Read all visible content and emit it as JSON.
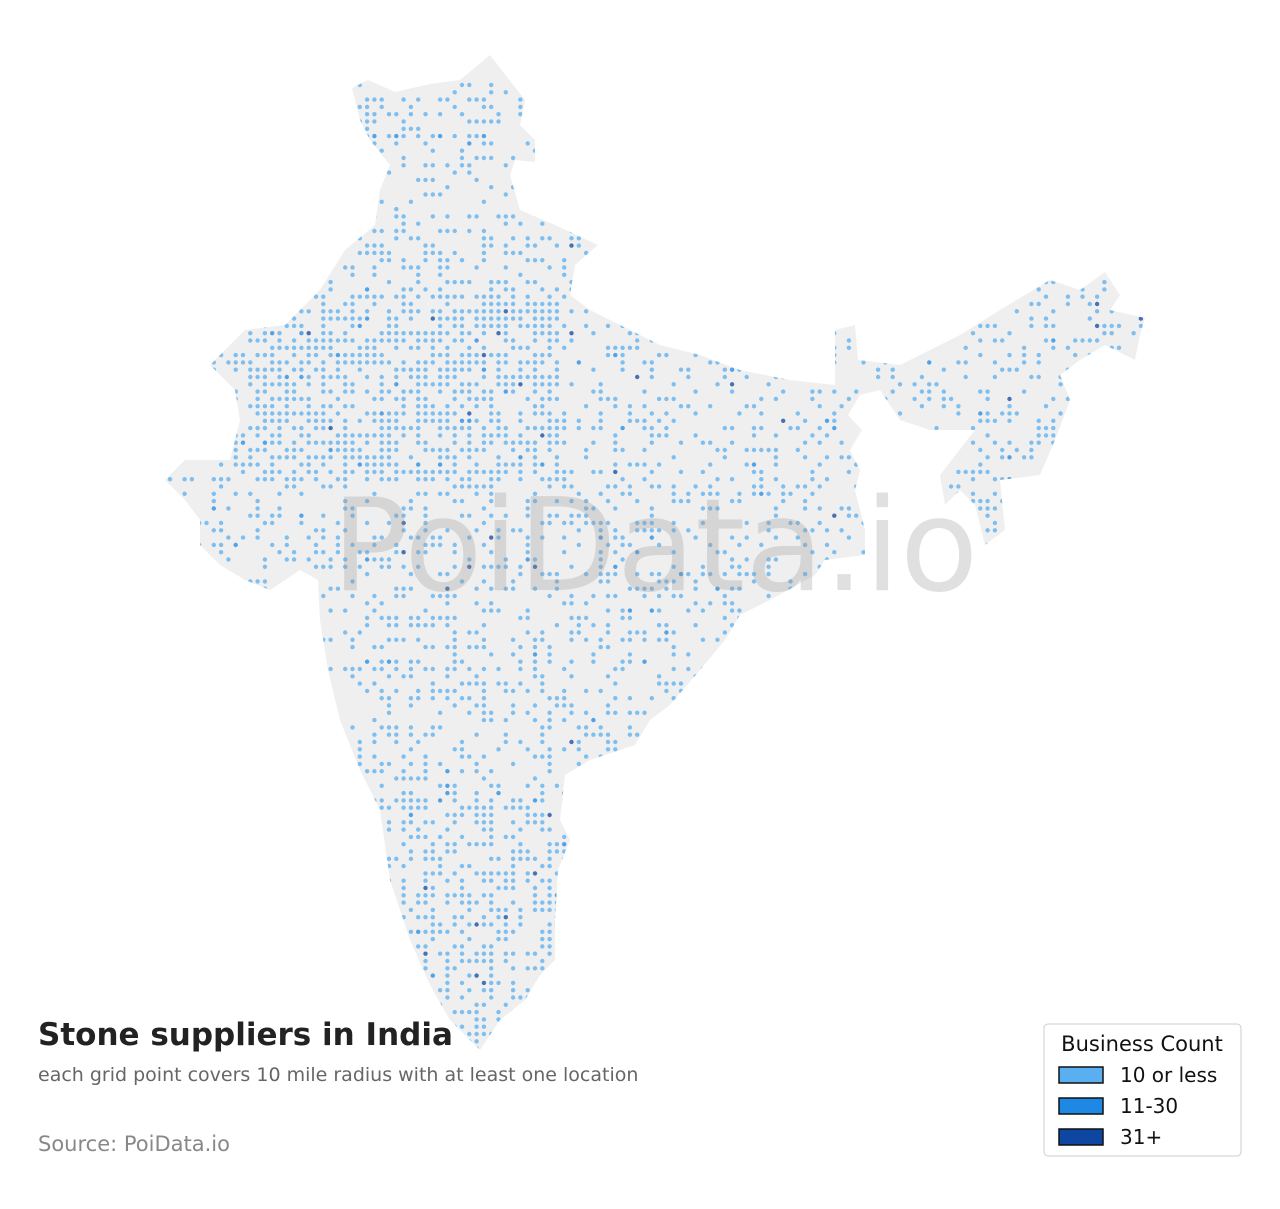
{
  "title": "Stone suppliers in India",
  "subtitle": "each grid point covers 10 mile radius with at least one location",
  "source": "Source: PoiData.io",
  "watermark": "PoiData.io",
  "legend": {
    "title": "Business Count",
    "items": [
      {
        "label": "10 or less",
        "color": "#5aaff0"
      },
      {
        "label": "11-30",
        "color": "#1e88e5"
      },
      {
        "label": "31+",
        "color": "#0d47a1"
      }
    ]
  }
}
